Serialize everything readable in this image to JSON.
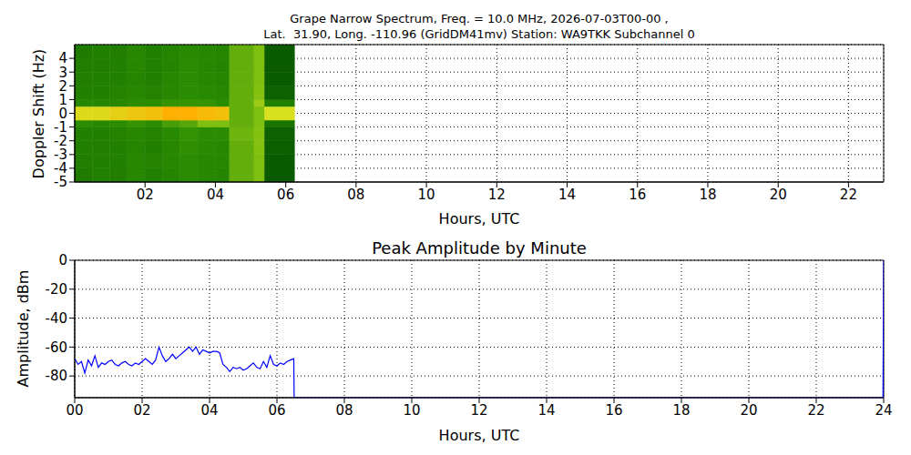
{
  "chart_data": [
    {
      "type": "heatmap",
      "title": [
        "Grape Narrow Spectrum, Freq. = 10.0 MHz, 2026-07-03T00-00 ,",
        "Lat.  31.90, Long. -110.96 (GridDM41mv) Station: WA9TKK Subchannel 0"
      ],
      "x_label": "Hours, UTC",
      "y_label": "Doppler Shift (Hz)",
      "xlim": [
        0,
        23
      ],
      "xticks": [
        {
          "value": 2,
          "label": "02"
        },
        {
          "value": 4,
          "label": "04"
        },
        {
          "value": 6,
          "label": "06"
        },
        {
          "value": 8,
          "label": "08"
        },
        {
          "value": 10,
          "label": "10"
        },
        {
          "value": 12,
          "label": "12"
        },
        {
          "value": 14,
          "label": "14"
        },
        {
          "value": 16,
          "label": "16"
        },
        {
          "value": 18,
          "label": "18"
        },
        {
          "value": 20,
          "label": "20"
        },
        {
          "value": 22,
          "label": "22"
        }
      ],
      "ylim": [
        -5,
        5
      ],
      "yticks": [
        -5,
        -4,
        -3,
        -2,
        -1,
        0,
        1,
        2,
        3,
        4
      ],
      "grid": true,
      "x_edges": [
        0,
        0.5,
        1,
        1.5,
        2,
        2.5,
        3,
        3.5,
        4,
        4.4,
        5.1,
        5.4,
        6.25
      ],
      "y_edges": [
        -5,
        -4,
        -3,
        -2,
        -1,
        -0.5,
        0.5,
        1,
        2,
        3,
        4,
        5
      ],
      "cells": [
        [
          0.33,
          0.35,
          0.34,
          0.38,
          0.35,
          0.37,
          0.4,
          0.38,
          0.37,
          0.5,
          0.55,
          0.2
        ],
        [
          0.34,
          0.35,
          0.35,
          0.38,
          0.36,
          0.38,
          0.4,
          0.38,
          0.38,
          0.5,
          0.55,
          0.2
        ],
        [
          0.35,
          0.34,
          0.35,
          0.37,
          0.35,
          0.38,
          0.41,
          0.39,
          0.38,
          0.5,
          0.56,
          0.21
        ],
        [
          0.35,
          0.35,
          0.36,
          0.38,
          0.36,
          0.39,
          0.42,
          0.4,
          0.4,
          0.52,
          0.56,
          0.22
        ],
        [
          0.4,
          0.38,
          0.4,
          0.42,
          0.4,
          0.45,
          0.48,
          0.55,
          0.55,
          0.5,
          0.55,
          0.3
        ],
        [
          0.72,
          0.72,
          0.75,
          0.78,
          0.8,
          0.85,
          0.85,
          0.82,
          0.8,
          0.5,
          0.55,
          0.7
        ],
        [
          0.38,
          0.38,
          0.38,
          0.4,
          0.4,
          0.42,
          0.42,
          0.42,
          0.4,
          0.5,
          0.6,
          0.35
        ],
        [
          0.35,
          0.35,
          0.36,
          0.38,
          0.36,
          0.38,
          0.4,
          0.39,
          0.38,
          0.5,
          0.56,
          0.22
        ],
        [
          0.34,
          0.35,
          0.35,
          0.37,
          0.35,
          0.38,
          0.4,
          0.38,
          0.37,
          0.5,
          0.55,
          0.2
        ],
        [
          0.34,
          0.34,
          0.35,
          0.38,
          0.35,
          0.37,
          0.4,
          0.38,
          0.37,
          0.5,
          0.55,
          0.2
        ],
        [
          0.33,
          0.35,
          0.34,
          0.38,
          0.35,
          0.37,
          0.39,
          0.38,
          0.37,
          0.5,
          0.55,
          0.2
        ]
      ]
    },
    {
      "type": "line",
      "title": "Peak Amplitude by Minute",
      "x_label": "Hours, UTC",
      "y_label": "Amplitude, dBm",
      "xlim": [
        0,
        24
      ],
      "xticks": [
        {
          "value": 0,
          "label": "00"
        },
        {
          "value": 2,
          "label": "02"
        },
        {
          "value": 4,
          "label": "04"
        },
        {
          "value": 6,
          "label": "06"
        },
        {
          "value": 8,
          "label": "08"
        },
        {
          "value": 10,
          "label": "10"
        },
        {
          "value": 12,
          "label": "12"
        },
        {
          "value": 14,
          "label": "14"
        },
        {
          "value": 16,
          "label": "16"
        },
        {
          "value": 18,
          "label": "18"
        },
        {
          "value": 20,
          "label": "20"
        },
        {
          "value": 22,
          "label": "22"
        },
        {
          "value": 24,
          "label": "24"
        }
      ],
      "ylim": [
        -95,
        0
      ],
      "yticks": [
        -80,
        -60,
        -40,
        -20,
        0
      ],
      "grid": true,
      "color": "#0000ff",
      "x": [
        0,
        0.1,
        0.2,
        0.3,
        0.4,
        0.5,
        0.6,
        0.7,
        0.8,
        0.9,
        1,
        1.1,
        1.2,
        1.3,
        1.4,
        1.5,
        1.6,
        1.7,
        1.8,
        1.9,
        2,
        2.1,
        2.2,
        2.3,
        2.4,
        2.5,
        2.6,
        2.7,
        2.8,
        2.9,
        3,
        3.1,
        3.2,
        3.3,
        3.4,
        3.5,
        3.6,
        3.7,
        3.8,
        3.9,
        4,
        4.1,
        4.2,
        4.3,
        4.4,
        4.5,
        4.6,
        4.7,
        4.8,
        4.9,
        5,
        5.1,
        5.2,
        5.3,
        5.4,
        5.5,
        5.6,
        5.7,
        5.8,
        5.9,
        6,
        6.1,
        6.2,
        6.3,
        6.4,
        6.5,
        6.51,
        23.98,
        24
      ],
      "values": [
        -68,
        -72,
        -70,
        -78,
        -69,
        -73,
        -66,
        -74,
        -71,
        -72,
        -70,
        -69,
        -72,
        -73,
        -71,
        -70,
        -72,
        -73,
        -71,
        -72,
        -70,
        -68,
        -70,
        -72,
        -69,
        -60,
        -66,
        -70,
        -68,
        -65,
        -68,
        -66,
        -64,
        -62,
        -60,
        -63,
        -60,
        -65,
        -62,
        -63,
        -64,
        -63,
        -63,
        -64,
        -72,
        -74,
        -77,
        -74,
        -75,
        -74,
        -76,
        -75,
        -73,
        -71,
        -74,
        -75,
        -70,
        -74,
        -66,
        -72,
        -73,
        -71,
        -72,
        -70,
        -69,
        -68,
        -95,
        -95,
        0
      ]
    }
  ]
}
